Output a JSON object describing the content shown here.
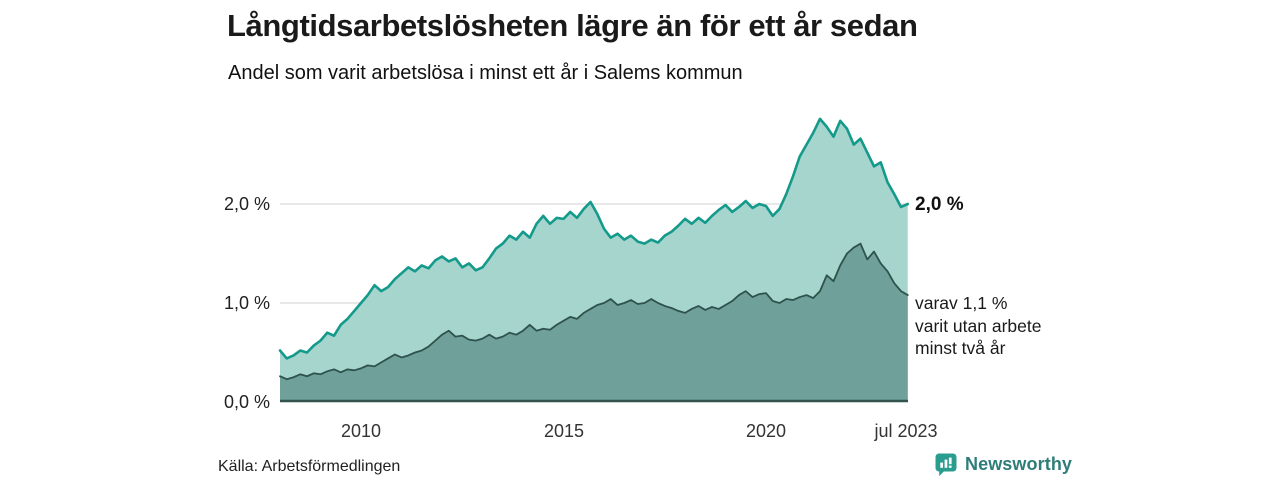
{
  "header": {
    "title": "Långtidsarbetslösheten lägre än för ett år sedan",
    "subtitle": "Andel som varit arbetslösa i minst ett år i Salems kommun"
  },
  "chart_data": {
    "type": "area",
    "title": "Långtidsarbetslösheten lägre än för ett år sedan",
    "subtitle": "Andel som varit arbetslösa i minst ett år i Salems kommun",
    "unit": "%",
    "x_start_year": 2008,
    "x_step_months": 2,
    "x_end_year": 2023.5,
    "ylim": [
      0,
      3.0
    ],
    "grid": "horizontal",
    "y_ticks": [
      {
        "value": 0,
        "label": "0,0 %"
      },
      {
        "value": 1,
        "label": "1,0 %"
      },
      {
        "value": 2,
        "label": "2,0 %"
      }
    ],
    "x_ticks": [
      {
        "value": 2010,
        "label": "2010"
      },
      {
        "value": 2015,
        "label": "2015"
      },
      {
        "value": 2020,
        "label": "2020"
      },
      {
        "value": 2023.5,
        "label": "jul 2023"
      }
    ],
    "series": [
      {
        "name": "arbetslösa minst ett år",
        "line_color": "#149a8a",
        "fill_color": "#a6d5ce",
        "line_width": 2.6,
        "last_value_label": "2,0 %",
        "values": [
          0.52,
          0.44,
          0.47,
          0.52,
          0.5,
          0.57,
          0.62,
          0.7,
          0.67,
          0.78,
          0.84,
          0.92,
          1.0,
          1.08,
          1.18,
          1.12,
          1.16,
          1.24,
          1.3,
          1.36,
          1.32,
          1.38,
          1.35,
          1.43,
          1.47,
          1.42,
          1.45,
          1.36,
          1.4,
          1.33,
          1.36,
          1.45,
          1.55,
          1.6,
          1.68,
          1.64,
          1.72,
          1.66,
          1.8,
          1.88,
          1.8,
          1.86,
          1.85,
          1.92,
          1.86,
          1.95,
          2.02,
          1.9,
          1.75,
          1.66,
          1.7,
          1.64,
          1.68,
          1.62,
          1.6,
          1.64,
          1.61,
          1.68,
          1.72,
          1.78,
          1.85,
          1.8,
          1.86,
          1.81,
          1.88,
          1.94,
          1.99,
          1.92,
          1.97,
          2.03,
          1.96,
          2.0,
          1.98,
          1.88,
          1.95,
          2.1,
          2.28,
          2.48,
          2.6,
          2.72,
          2.86,
          2.78,
          2.68,
          2.84,
          2.76,
          2.6,
          2.66,
          2.52,
          2.38,
          2.42,
          2.22,
          2.1,
          1.97,
          2.0
        ]
      },
      {
        "name": "varav utan arbete minst två år",
        "line_color": "#2e524c",
        "fill_color": "#70a09a",
        "line_width": 1.8,
        "last_value_label": "1,1 %",
        "values": [
          0.26,
          0.23,
          0.25,
          0.28,
          0.26,
          0.29,
          0.28,
          0.31,
          0.33,
          0.3,
          0.33,
          0.32,
          0.34,
          0.37,
          0.36,
          0.4,
          0.44,
          0.48,
          0.45,
          0.47,
          0.5,
          0.52,
          0.56,
          0.62,
          0.68,
          0.72,
          0.66,
          0.67,
          0.63,
          0.62,
          0.64,
          0.68,
          0.64,
          0.66,
          0.7,
          0.68,
          0.72,
          0.78,
          0.72,
          0.74,
          0.73,
          0.78,
          0.82,
          0.86,
          0.84,
          0.9,
          0.94,
          0.98,
          1.0,
          1.04,
          0.98,
          1.0,
          1.03,
          0.99,
          1.0,
          1.04,
          1.0,
          0.97,
          0.95,
          0.92,
          0.9,
          0.94,
          0.97,
          0.93,
          0.96,
          0.94,
          0.98,
          1.02,
          1.08,
          1.12,
          1.06,
          1.09,
          1.1,
          1.02,
          1.0,
          1.04,
          1.03,
          1.06,
          1.08,
          1.05,
          1.12,
          1.28,
          1.22,
          1.38,
          1.5,
          1.56,
          1.6,
          1.44,
          1.52,
          1.4,
          1.32,
          1.2,
          1.12,
          1.08
        ]
      }
    ],
    "grid_color": "#d9d9d9",
    "baseline_color": "#33544e"
  },
  "annotations": {
    "total_label": "2,0 %",
    "varav_lines": [
      "varav 1,1 %",
      "varit utan arbete",
      "minst två år"
    ]
  },
  "footer": {
    "source": "Källa: Arbetsförmedlingen",
    "brand": "Newsworthy"
  },
  "colors": {
    "brand_badge": "#2b9d8f",
    "brand_text": "#2e7d78"
  }
}
